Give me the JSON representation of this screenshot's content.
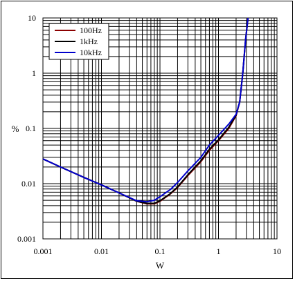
{
  "chart_data": {
    "type": "line",
    "xlabel": "W",
    "ylabel": "%",
    "x_scale": "log",
    "y_scale": "log",
    "xlim": [
      0.001,
      10
    ],
    "ylim": [
      0.001,
      10
    ],
    "grid": true,
    "legend_position": "top-left",
    "x_tick_labels": [
      "0.001",
      "0.01",
      "0.1",
      "1",
      "10"
    ],
    "y_tick_labels": [
      "0.001",
      "0.01",
      "0.1",
      "1",
      "10"
    ],
    "series": [
      {
        "name": "100Hz",
        "color": "#8b0000",
        "x": [
          0.001,
          0.002,
          0.005,
          0.01,
          0.02,
          0.04,
          0.06,
          0.08,
          0.1,
          0.15,
          0.2,
          0.3,
          0.5,
          0.7,
          1.0,
          1.5,
          2.0,
          2.3,
          2.6,
          2.9,
          3.2
        ],
        "y": [
          0.028,
          0.02,
          0.013,
          0.0095,
          0.0068,
          0.0048,
          0.0043,
          0.0043,
          0.0048,
          0.0065,
          0.0085,
          0.014,
          0.025,
          0.04,
          0.06,
          0.1,
          0.17,
          0.3,
          1.0,
          4.0,
          10.0
        ]
      },
      {
        "name": "1kHz",
        "color": "#000000",
        "x": [
          0.001,
          0.002,
          0.005,
          0.01,
          0.02,
          0.04,
          0.06,
          0.08,
          0.1,
          0.15,
          0.2,
          0.3,
          0.5,
          0.7,
          1.0,
          1.5,
          2.0,
          2.3,
          2.6,
          2.9,
          3.2
        ],
        "y": [
          0.028,
          0.02,
          0.013,
          0.0095,
          0.0068,
          0.0048,
          0.0044,
          0.0044,
          0.0049,
          0.0066,
          0.0087,
          0.0145,
          0.026,
          0.042,
          0.062,
          0.105,
          0.175,
          0.3,
          1.0,
          4.0,
          10.0
        ]
      },
      {
        "name": "10kHz",
        "color": "#0000cc",
        "x": [
          0.001,
          0.002,
          0.005,
          0.01,
          0.02,
          0.04,
          0.06,
          0.08,
          0.1,
          0.15,
          0.2,
          0.3,
          0.5,
          0.7,
          1.0,
          1.5,
          2.0,
          2.3,
          2.6,
          2.9,
          3.2
        ],
        "y": [
          0.028,
          0.02,
          0.013,
          0.0095,
          0.0068,
          0.0049,
          0.0047,
          0.005,
          0.0058,
          0.0078,
          0.0105,
          0.017,
          0.03,
          0.05,
          0.075,
          0.12,
          0.18,
          0.3,
          1.0,
          4.0,
          10.0
        ]
      }
    ]
  }
}
